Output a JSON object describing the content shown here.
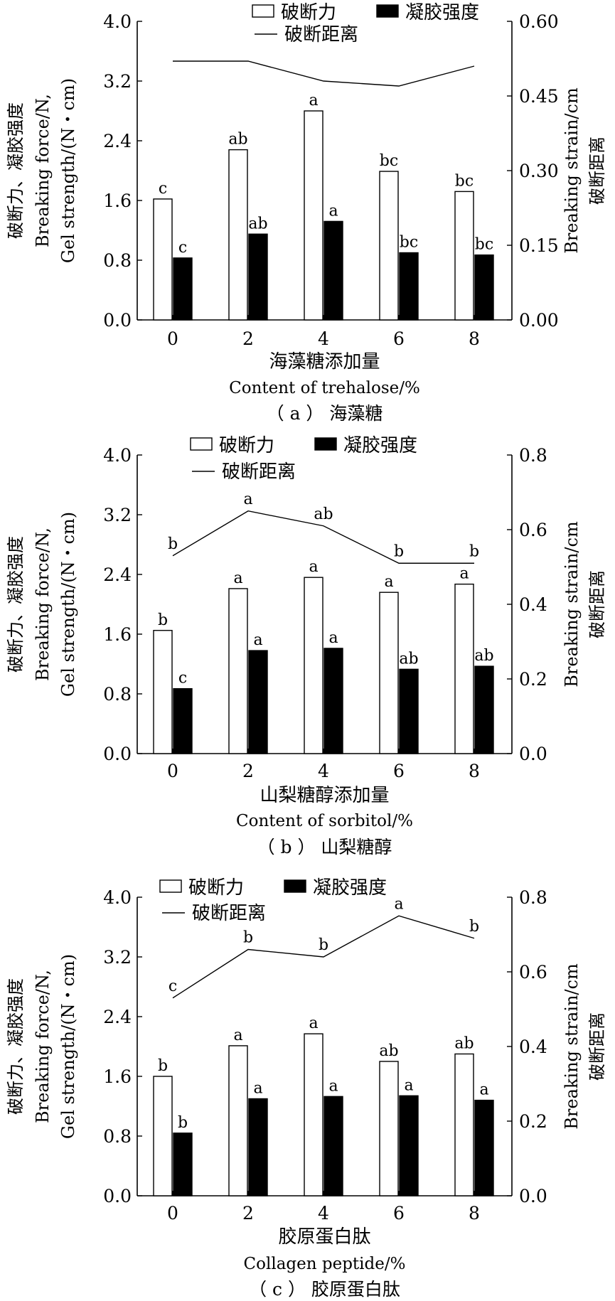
{
  "legend": {
    "breaking_force": "破断力",
    "gel_strength": "凝胶强度",
    "breaking_strain": "破断距离"
  },
  "colors": {
    "bar_force": "#ffffff",
    "bar_gel": "#000000",
    "line": "#000000"
  },
  "chart_data": [
    {
      "type": "bar",
      "caption": "（ a ） 海藻糖",
      "xlabel_cn": "海藻糖添加量",
      "xlabel_en": "Content of trehalose/%",
      "ylabel_left": [
        "破断力、凝胶强度",
        "Breaking force/N,",
        "Gel strength/(N・cm)"
      ],
      "ylabel_right": [
        "Breaking strain/cm",
        "破断距离"
      ],
      "categories": [
        "0",
        "2",
        "4",
        "6",
        "8"
      ],
      "ylim": [
        0,
        4.0
      ],
      "yticks": [
        "0.0",
        "0.8",
        "1.6",
        "2.4",
        "3.2",
        "4.0"
      ],
      "y2lim": [
        0,
        0.6
      ],
      "y2ticks": [
        "0.00",
        "0.15",
        "0.30",
        "0.45",
        "0.60"
      ],
      "series": [
        {
          "name": "破断力",
          "values": [
            1.62,
            2.28,
            2.8,
            1.99,
            1.72
          ],
          "labels": [
            "c",
            "ab",
            "a",
            "bc",
            "bc"
          ]
        },
        {
          "name": "凝胶强度",
          "values": [
            0.83,
            1.15,
            1.32,
            0.9,
            0.87
          ],
          "labels": [
            "c",
            "ab",
            "a",
            "bc",
            "bc"
          ]
        },
        {
          "name": "破断距离",
          "values": [
            0.52,
            0.52,
            0.48,
            0.47,
            0.51
          ],
          "labels": [
            "",
            "",
            "",
            "",
            ""
          ]
        }
      ]
    },
    {
      "type": "bar",
      "caption": "（ b ） 山梨糖醇",
      "xlabel_cn": "山梨糖醇添加量",
      "xlabel_en": "Content of sorbitol/%",
      "ylabel_left": [
        "破断力、凝胶强度",
        "Breaking force/N,",
        "Gel strength/(N・cm)"
      ],
      "ylabel_right": [
        "Breaking strain/cm",
        "破断距离"
      ],
      "categories": [
        "0",
        "2",
        "4",
        "6",
        "8"
      ],
      "ylim": [
        0,
        4.0
      ],
      "yticks": [
        "0.0",
        "0.8",
        "1.6",
        "2.4",
        "3.2",
        "4.0"
      ],
      "y2lim": [
        0,
        0.8
      ],
      "y2ticks": [
        "0.0",
        "0.2",
        "0.4",
        "0.6",
        "0.8"
      ],
      "series": [
        {
          "name": "破断力",
          "values": [
            1.65,
            2.21,
            2.36,
            2.16,
            2.27
          ],
          "labels": [
            "b",
            "a",
            "a",
            "a",
            "a"
          ]
        },
        {
          "name": "凝胶强度",
          "values": [
            0.87,
            1.38,
            1.41,
            1.13,
            1.17
          ],
          "labels": [
            "c",
            "a",
            "a",
            "ab",
            "ab"
          ]
        },
        {
          "name": "破断距离",
          "values": [
            0.53,
            0.65,
            0.61,
            0.51,
            0.51
          ],
          "labels": [
            "b",
            "a",
            "ab",
            "b",
            "b"
          ]
        }
      ]
    },
    {
      "type": "bar",
      "caption": "（ c ） 胶原蛋白肽",
      "xlabel_cn": "胶原蛋白肽",
      "xlabel_en": "Collagen peptide/%",
      "ylabel_left": [
        "破断力、凝胶强度",
        "Breaking force/N,",
        "Gel strength/(N・cm)"
      ],
      "ylabel_right": [
        "Breaking strain/cm",
        "破断距离"
      ],
      "categories": [
        "0",
        "2",
        "4",
        "6",
        "8"
      ],
      "ylim": [
        0,
        4.0
      ],
      "yticks": [
        "0.0",
        "0.8",
        "1.6",
        "2.4",
        "3.2",
        "4.0"
      ],
      "y2lim": [
        0,
        0.8
      ],
      "y2ticks": [
        "0.0",
        "0.2",
        "0.4",
        "0.6",
        "0.8"
      ],
      "series": [
        {
          "name": "破断力",
          "values": [
            1.6,
            2.01,
            2.17,
            1.8,
            1.9
          ],
          "labels": [
            "b",
            "a",
            "a",
            "ab",
            "ab"
          ]
        },
        {
          "name": "凝胶强度",
          "values": [
            0.84,
            1.3,
            1.33,
            1.34,
            1.28
          ],
          "labels": [
            "b",
            "a",
            "a",
            "a",
            "a"
          ]
        },
        {
          "name": "破断距离",
          "values": [
            0.53,
            0.66,
            0.64,
            0.75,
            0.69
          ],
          "labels": [
            "c",
            "b",
            "b",
            "a",
            "b"
          ]
        }
      ]
    }
  ]
}
